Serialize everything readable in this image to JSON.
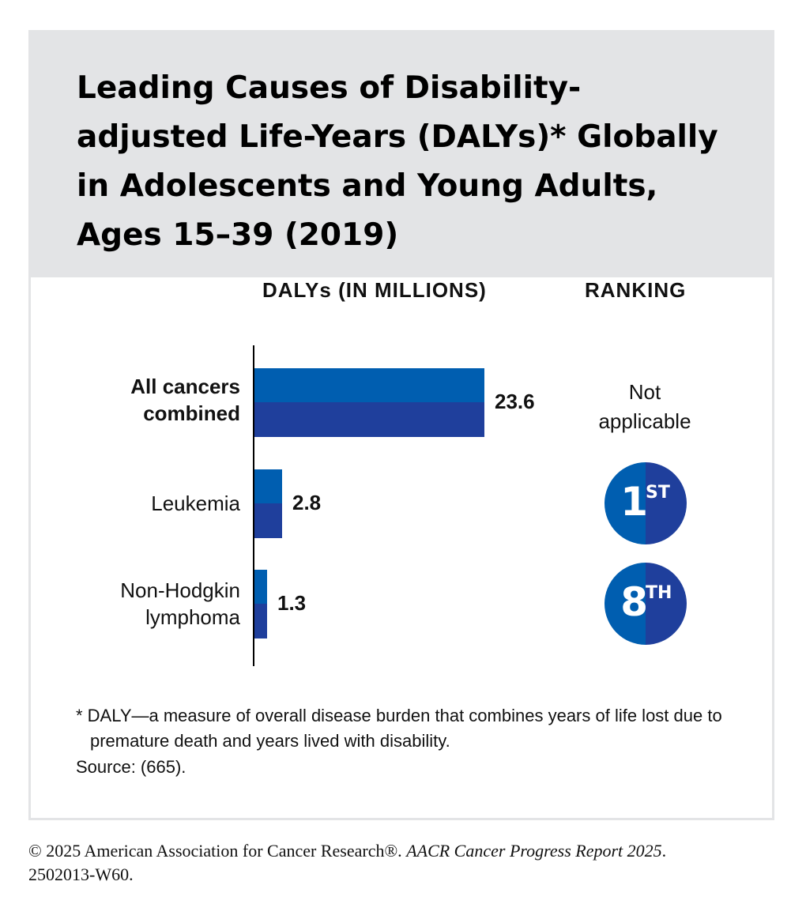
{
  "title": "Leading Causes of Disability-adjusted Life-Years (DALYs)* Globally in Adolescents and Young Adults, Ages 15–39 (2019)",
  "column_headers": {
    "dalys": "DALYs (IN MILLIONS)",
    "ranking": "RANKING"
  },
  "colors": {
    "header_bg": "#e3e4e6",
    "bar_top": "#005eb0",
    "bar_bottom": "#1f3f9c"
  },
  "chart_data": {
    "type": "bar",
    "orientation": "horizontal",
    "categories": [
      "All cancers\ncombined",
      "Leukemia",
      "Non-Hodgkin\nlymphoma"
    ],
    "values": [
      23.6,
      2.8,
      1.3
    ],
    "value_labels": [
      "23.6",
      "2.8",
      "1.3"
    ],
    "title": "",
    "xlabel": "DALYs (IN MILLIONS)",
    "ylabel": "",
    "xlim": [
      0,
      23.6
    ],
    "grid": false,
    "legend": "none"
  },
  "rankings": [
    {
      "text": "Not\napplicable"
    },
    {
      "number": "1",
      "suffix": "ST"
    },
    {
      "number": "8",
      "suffix": "TH"
    }
  ],
  "footnote": "* DALY—a measure of overall disease burden that combines years of life lost due to premature death and years lived with disability.",
  "source": "Source: (665).",
  "copyright": {
    "main": "© 2025 American Association for Cancer Research®. ",
    "report": "AACR Cancer Progress Report 2025",
    "end": ".",
    "code": "2502013-W60."
  }
}
